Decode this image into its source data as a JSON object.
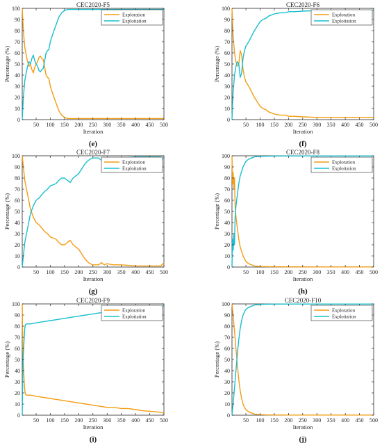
{
  "figure": {
    "colors": {
      "exploration": "#f39c12",
      "exploitation": "#17becf",
      "axis": "#262626"
    }
  },
  "chart_data": [
    {
      "type": "line",
      "title": "CEC2020-F5",
      "panel_label": "(e)",
      "xlabel": "Iteration",
      "ylabel": "Percentage (%)",
      "xlim": [
        1,
        500
      ],
      "ylim": [
        0,
        100
      ],
      "xticks": [
        50,
        100,
        150,
        200,
        250,
        300,
        350,
        400,
        450,
        500
      ],
      "yticks": [
        0,
        10,
        20,
        30,
        40,
        50,
        60,
        70,
        80,
        90,
        100
      ],
      "grid": false,
      "legend_position": "top-right",
      "series": [
        {
          "name": "Exploration",
          "x": [
            1,
            5,
            10,
            15,
            20,
            25,
            30,
            35,
            40,
            45,
            50,
            55,
            60,
            65,
            70,
            75,
            80,
            85,
            90,
            95,
            100,
            110,
            120,
            130,
            140,
            150,
            160,
            180,
            200,
            250,
            300,
            400,
            500
          ],
          "y": [
            100,
            80,
            65,
            58,
            52,
            48,
            50,
            45,
            42,
            47,
            50,
            52,
            56,
            57,
            55,
            54,
            47,
            40,
            38,
            37,
            30,
            22,
            15,
            8,
            4,
            2,
            1,
            1,
            1,
            1,
            1,
            1,
            1
          ]
        },
        {
          "name": "Exploitation",
          "x": [
            1,
            5,
            10,
            15,
            20,
            25,
            30,
            35,
            40,
            45,
            50,
            55,
            60,
            65,
            70,
            75,
            80,
            85,
            90,
            95,
            100,
            110,
            120,
            130,
            140,
            150,
            160,
            180,
            200,
            250,
            300,
            400,
            500
          ],
          "y": [
            0,
            20,
            35,
            42,
            48,
            52,
            50,
            55,
            58,
            53,
            50,
            48,
            44,
            43,
            45,
            46,
            53,
            60,
            62,
            63,
            70,
            78,
            85,
            92,
            96,
            98,
            99,
            99,
            99,
            99,
            99,
            99,
            99
          ]
        }
      ]
    },
    {
      "type": "line",
      "title": "CEC2020-F6",
      "panel_label": "(f)",
      "xlabel": "Iteration",
      "ylabel": "Percentage (%)",
      "xlim": [
        1,
        500
      ],
      "ylim": [
        0,
        100
      ],
      "xticks": [
        50,
        100,
        150,
        200,
        250,
        300,
        350,
        400,
        450,
        500
      ],
      "yticks": [
        0,
        10,
        20,
        30,
        40,
        50,
        60,
        70,
        80,
        90,
        100
      ],
      "grid": false,
      "legend_position": "top-right",
      "series": [
        {
          "name": "Exploration",
          "x": [
            1,
            5,
            10,
            15,
            20,
            25,
            30,
            35,
            40,
            45,
            50,
            60,
            70,
            80,
            90,
            100,
            110,
            120,
            130,
            150,
            170,
            190,
            200,
            220,
            250,
            300,
            400,
            500
          ],
          "y": [
            100,
            75,
            60,
            52,
            48,
            50,
            62,
            58,
            45,
            38,
            34,
            30,
            25,
            20,
            16,
            12,
            10,
            9,
            7,
            5,
            4,
            4,
            3,
            3,
            2.5,
            2,
            2,
            2
          ]
        },
        {
          "name": "Exploitation",
          "x": [
            1,
            5,
            10,
            15,
            20,
            25,
            30,
            35,
            40,
            45,
            50,
            60,
            70,
            80,
            90,
            100,
            110,
            120,
            130,
            150,
            170,
            190,
            200,
            220,
            250,
            300,
            400,
            500
          ],
          "y": [
            0,
            25,
            40,
            48,
            52,
            50,
            38,
            42,
            55,
            62,
            66,
            70,
            75,
            80,
            84,
            88,
            90,
            91,
            93,
            95,
            96,
            96,
            97,
            97,
            97.5,
            98,
            98,
            98
          ]
        }
      ]
    },
    {
      "type": "line",
      "title": "CEC2020-F7",
      "panel_label": "(g)",
      "xlabel": "Iteration",
      "ylabel": "Percentage (%)",
      "xlim": [
        1,
        500
      ],
      "ylim": [
        0,
        100
      ],
      "xticks": [
        50,
        100,
        150,
        200,
        250,
        300,
        350,
        400,
        450,
        500
      ],
      "yticks": [
        0,
        10,
        20,
        30,
        40,
        50,
        60,
        70,
        80,
        90,
        100
      ],
      "grid": false,
      "legend_position": "top-right",
      "series": [
        {
          "name": "Exploration",
          "x": [
            1,
            5,
            10,
            20,
            30,
            40,
            50,
            60,
            70,
            80,
            90,
            100,
            110,
            120,
            130,
            140,
            150,
            160,
            170,
            180,
            190,
            200,
            210,
            220,
            230,
            240,
            250,
            270,
            280,
            290,
            300,
            320,
            350,
            400,
            450,
            490,
            495,
            500
          ],
          "y": [
            100,
            90,
            78,
            65,
            52,
            45,
            40,
            38,
            35,
            32,
            30,
            27,
            26,
            25,
            22,
            20,
            20,
            22,
            24,
            20,
            18,
            16,
            12,
            8,
            5,
            3,
            2,
            2,
            4,
            2,
            3,
            2,
            2,
            1,
            1,
            1,
            3,
            2
          ]
        },
        {
          "name": "Exploitation",
          "x": [
            1,
            5,
            10,
            20,
            30,
            40,
            50,
            60,
            70,
            80,
            90,
            100,
            110,
            120,
            130,
            140,
            150,
            160,
            170,
            180,
            190,
            200,
            210,
            220,
            230,
            240,
            250,
            270,
            280,
            290,
            300,
            320,
            350,
            400,
            450,
            490,
            495,
            500
          ],
          "y": [
            0,
            10,
            22,
            35,
            48,
            55,
            60,
            62,
            65,
            68,
            70,
            73,
            74,
            75,
            78,
            80,
            80,
            78,
            76,
            80,
            82,
            84,
            88,
            92,
            95,
            97,
            98,
            98,
            96,
            98,
            97,
            98,
            98,
            99,
            99,
            99,
            97,
            98
          ]
        }
      ]
    },
    {
      "type": "line",
      "title": "CEC2020-F8",
      "panel_label": "(h)",
      "xlabel": "Iteration",
      "ylabel": "Percentage (%)",
      "xlim": [
        1,
        500
      ],
      "ylim": [
        0,
        100
      ],
      "xticks": [
        50,
        100,
        150,
        200,
        250,
        300,
        350,
        400,
        450,
        500
      ],
      "yticks": [
        0,
        10,
        20,
        30,
        40,
        50,
        60,
        70,
        80,
        90,
        100
      ],
      "grid": false,
      "legend_position": "top-right",
      "series": [
        {
          "name": "Exploration",
          "x": [
            1,
            3,
            5,
            8,
            10,
            12,
            15,
            20,
            25,
            30,
            40,
            50,
            60,
            70,
            80,
            100,
            150,
            200,
            300,
            400,
            500
          ],
          "y": [
            100,
            75,
            85,
            70,
            80,
            55,
            45,
            35,
            25,
            18,
            10,
            5,
            3,
            2,
            1,
            0.5,
            0.3,
            0.2,
            0.1,
            0.1,
            0.1
          ]
        },
        {
          "name": "Exploitation",
          "x": [
            1,
            3,
            5,
            8,
            10,
            12,
            15,
            20,
            25,
            30,
            40,
            50,
            60,
            70,
            80,
            100,
            150,
            200,
            300,
            400,
            500
          ],
          "y": [
            0,
            25,
            15,
            30,
            20,
            45,
            55,
            65,
            75,
            82,
            90,
            95,
            97,
            98,
            99,
            99.5,
            99.7,
            99.8,
            99.9,
            99.9,
            99.9
          ]
        }
      ]
    },
    {
      "type": "line",
      "title": "CEC2020-F9",
      "panel_label": "(i)",
      "xlabel": "Iteration",
      "ylabel": "Percentage (%)",
      "xlim": [
        1,
        500
      ],
      "ylim": [
        0,
        100
      ],
      "xticks": [
        50,
        100,
        150,
        200,
        250,
        300,
        350,
        400,
        450,
        500
      ],
      "yticks": [
        0,
        10,
        20,
        30,
        40,
        50,
        60,
        70,
        80,
        90,
        100
      ],
      "grid": false,
      "legend_position": "top-right",
      "series": [
        {
          "name": "Exploration",
          "x": [
            1,
            3,
            5,
            8,
            10,
            12,
            15,
            20,
            30,
            50,
            75,
            100,
            125,
            150,
            175,
            200,
            225,
            250,
            275,
            300,
            325,
            350,
            375,
            400,
            425,
            450,
            475,
            500
          ],
          "y": [
            100,
            60,
            45,
            30,
            22,
            19,
            18,
            18,
            18,
            17,
            16,
            15,
            14,
            13,
            12,
            11,
            10,
            9,
            8,
            7,
            7,
            6,
            6,
            5,
            4,
            3.5,
            3,
            2
          ]
        },
        {
          "name": "Exploitation",
          "x": [
            1,
            3,
            5,
            8,
            10,
            12,
            15,
            20,
            30,
            50,
            75,
            100,
            125,
            150,
            175,
            200,
            225,
            250,
            275,
            300,
            325,
            350,
            375,
            400,
            425,
            450,
            475,
            500
          ],
          "y": [
            0,
            40,
            55,
            70,
            78,
            81,
            82,
            82,
            82,
            83,
            84,
            85,
            86,
            87,
            88,
            89,
            90,
            91,
            92,
            93,
            93,
            94,
            94,
            95,
            96,
            96.5,
            97,
            98
          ]
        }
      ]
    },
    {
      "type": "line",
      "title": "CEC2020-F10",
      "panel_label": "(j)",
      "xlabel": "Iteration",
      "ylabel": "Percentage (%)",
      "xlim": [
        1,
        500
      ],
      "ylim": [
        0,
        100
      ],
      "xticks": [
        50,
        100,
        150,
        200,
        250,
        300,
        350,
        400,
        450,
        500
      ],
      "yticks": [
        0,
        10,
        20,
        30,
        40,
        50,
        60,
        70,
        80,
        90,
        100
      ],
      "grid": false,
      "legend_position": "top-right",
      "series": [
        {
          "name": "Exploration",
          "x": [
            1,
            5,
            10,
            15,
            20,
            25,
            30,
            35,
            40,
            45,
            50,
            60,
            70,
            80,
            100,
            120,
            150,
            200,
            300,
            400,
            500
          ],
          "y": [
            100,
            90,
            75,
            60,
            45,
            32,
            22,
            15,
            10,
            7,
            5,
            3,
            2,
            1,
            0.5,
            0.3,
            0.2,
            0.1,
            0.1,
            0.1,
            0.1
          ]
        },
        {
          "name": "Exploitation",
          "x": [
            1,
            5,
            10,
            15,
            20,
            25,
            30,
            35,
            40,
            45,
            50,
            60,
            70,
            80,
            100,
            120,
            150,
            200,
            300,
            400,
            500
          ],
          "y": [
            0,
            10,
            25,
            40,
            55,
            68,
            78,
            85,
            90,
            93,
            95,
            97,
            98,
            99,
            99.5,
            99.7,
            99.8,
            99.9,
            99.9,
            99.9,
            99.9
          ]
        }
      ]
    }
  ]
}
